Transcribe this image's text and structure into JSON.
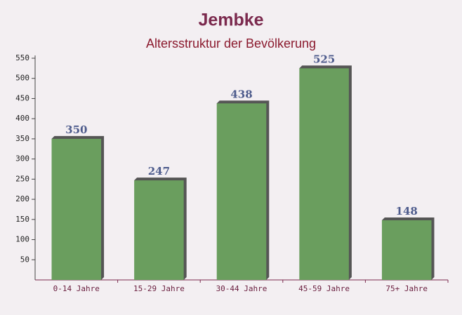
{
  "chart_data": {
    "type": "bar",
    "title": "Jembke",
    "subtitle": "Altersstruktur der Bevölkerung",
    "categories": [
      "0-14 Jahre",
      "15-29 Jahre",
      "30-44 Jahre",
      "45-59 Jahre",
      "75+ Jahre"
    ],
    "values": [
      350,
      247,
      438,
      525,
      148
    ],
    "color": "#6a9e5e",
    "ylim": [
      0,
      550
    ],
    "yticks": [
      50,
      100,
      150,
      200,
      250,
      300,
      350,
      400,
      450,
      500,
      550
    ]
  }
}
